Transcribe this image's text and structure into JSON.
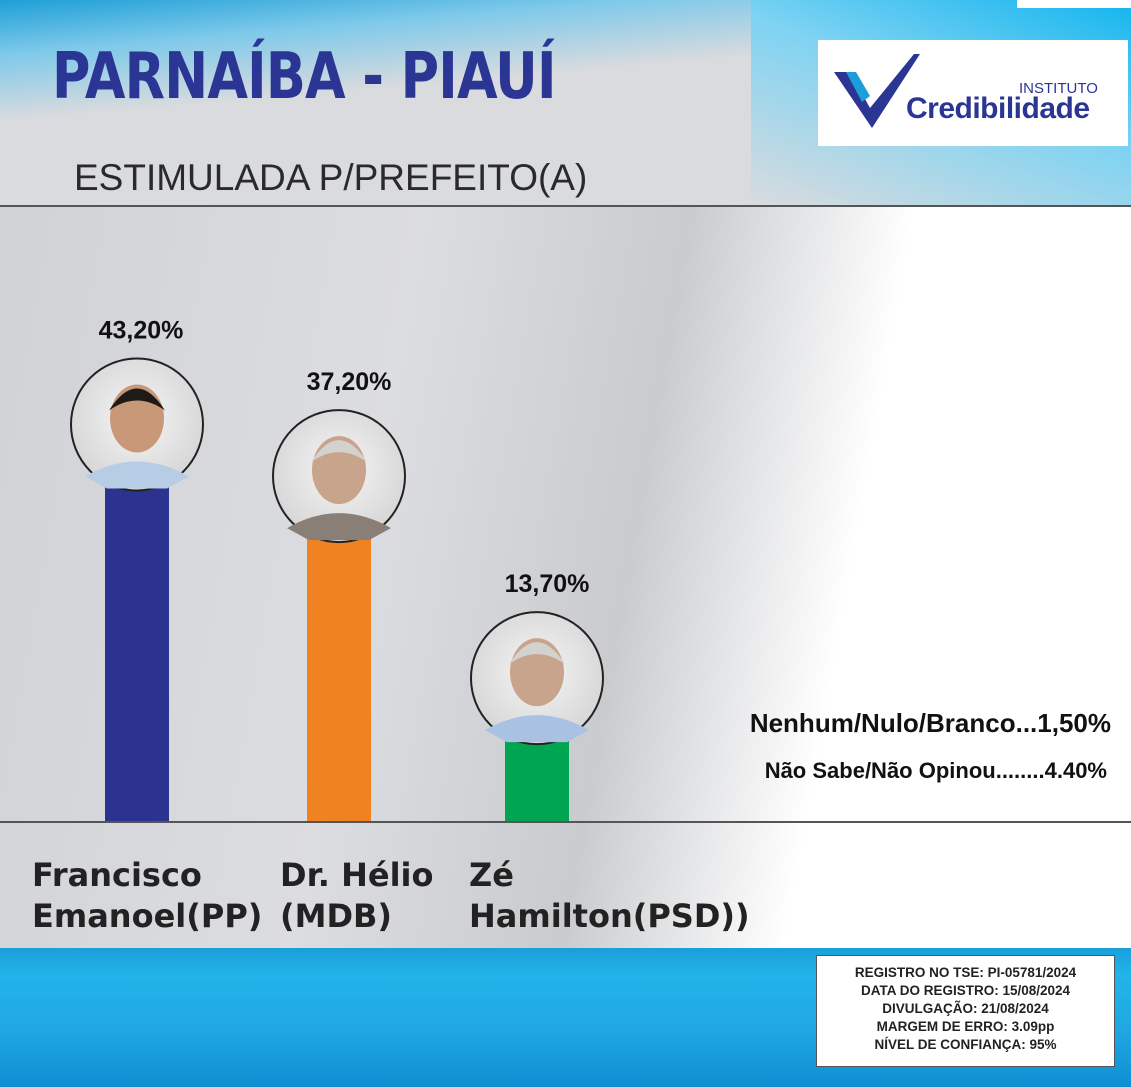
{
  "header": {
    "city": "PARNAÍBA - PIAUÍ",
    "subtitle": "ESTIMULADA P/PREFEITO(A)",
    "logo_small": "INSTITUTO",
    "logo_name": "Credibilidade"
  },
  "chart_data": {
    "type": "bar",
    "title": "ESTIMULADA P/PREFEITO(A)",
    "categories": [
      "Francisco Emanoel(PP)",
      "Dr. Hélio (MDB)",
      "Zé Hamilton(PSD))"
    ],
    "values": [
      43.2,
      37.2,
      13.7
    ],
    "value_labels": [
      "43,20%",
      "37,20%",
      "13,70%"
    ],
    "colors": [
      "#2b3290",
      "#f08222",
      "#00a551"
    ],
    "ylim": [
      0,
      50
    ],
    "grid": false,
    "legend": "none",
    "annotations": [
      "Nenhum/Nulo/Branco...1,50%",
      "Não Sabe/Não Opinou........4.40%"
    ]
  },
  "candidates": [
    {
      "line1": "Francisco",
      "line2": "Emanoel(PP)"
    },
    {
      "line1": "Dr. Hélio",
      "line2": "(MDB)"
    },
    {
      "line1": "Zé",
      "line2": "Hamilton(PSD))"
    }
  ],
  "others": {
    "null_blank": "Nenhum/Nulo/Branco...1,50%",
    "dont_know": "Não Sabe/Não Opinou........4.40%"
  },
  "registration": {
    "line1": "REGISTRO NO TSE: PI-05781/2024",
    "line2": "DATA DO REGISTRO: 15/08/2024",
    "line3": "DIVULGAÇÃO: 21/08/2024",
    "line4": "MARGEM DE ERRO: 3.09pp",
    "line5": "NÍVEL DE CONFIANÇA: 95%"
  }
}
